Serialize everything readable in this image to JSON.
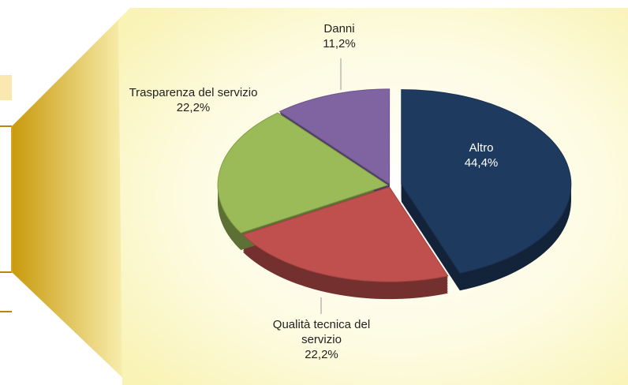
{
  "chart_data": {
    "type": "pie",
    "categories": [
      "Altro",
      "Qualità tecnica del servizio",
      "Trasparenza del servizio",
      "Danni"
    ],
    "values": [
      44.4,
      22.2,
      22.2,
      11.2
    ],
    "value_labels": [
      "44,4%",
      "22,2%",
      "22,2%",
      "11,2%"
    ],
    "colors": [
      "#1f3a5f",
      "#c0504d",
      "#9bbb59",
      "#8064a2"
    ]
  }
}
